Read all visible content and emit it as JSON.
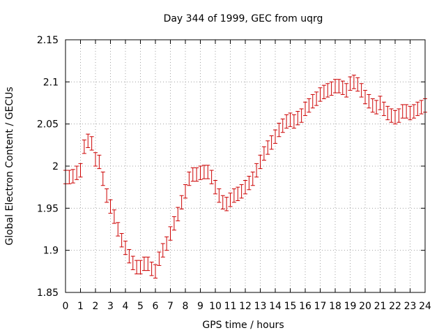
{
  "chart_data": {
    "type": "scatter",
    "title": "Day 344 of 1999, GEC from uqrg",
    "xlabel": "GPS time / hours",
    "ylabel": "Global Electron Content / GECUs",
    "xlim": [
      0,
      24
    ],
    "ylim": [
      1.85,
      2.15
    ],
    "grid": true,
    "series_color": "#cc0000",
    "x_ticks": [
      0,
      1,
      2,
      3,
      4,
      5,
      6,
      7,
      8,
      9,
      10,
      11,
      12,
      13,
      14,
      15,
      16,
      17,
      18,
      19,
      20,
      21,
      22,
      23,
      24
    ],
    "y_ticks": [
      {
        "value": 1.85,
        "label": "1.85"
      },
      {
        "value": 1.9,
        "label": "1.9"
      },
      {
        "value": 1.95,
        "label": "1.95"
      },
      {
        "value": 2.0,
        "label": "2"
      },
      {
        "value": 2.05,
        "label": "2.05"
      },
      {
        "value": 2.1,
        "label": "2.1"
      },
      {
        "value": 2.15,
        "label": "2.15"
      }
    ],
    "error": 0.008,
    "x": [
      0.0,
      0.25,
      0.5,
      0.75,
      1.0,
      1.25,
      1.5,
      1.75,
      2.0,
      2.25,
      2.5,
      2.75,
      3.0,
      3.25,
      3.5,
      3.75,
      4.0,
      4.25,
      4.5,
      4.75,
      5.0,
      5.25,
      5.5,
      5.75,
      6.0,
      6.25,
      6.5,
      6.75,
      7.0,
      7.25,
      7.5,
      7.75,
      8.0,
      8.25,
      8.5,
      8.75,
      9.0,
      9.25,
      9.5,
      9.75,
      10.0,
      10.25,
      10.5,
      10.75,
      11.0,
      11.25,
      11.5,
      11.75,
      12.0,
      12.25,
      12.5,
      12.75,
      13.0,
      13.25,
      13.5,
      13.75,
      14.0,
      14.25,
      14.5,
      14.75,
      15.0,
      15.25,
      15.5,
      15.75,
      16.0,
      16.25,
      16.5,
      16.75,
      17.0,
      17.25,
      17.5,
      17.75,
      18.0,
      18.25,
      18.5,
      18.75,
      19.0,
      19.25,
      19.5,
      19.75,
      20.0,
      20.25,
      20.5,
      20.75,
      21.0,
      21.25,
      21.5,
      21.75,
      22.0,
      22.25,
      22.5,
      22.75,
      23.0,
      23.25,
      23.5,
      23.75,
      24.0
    ],
    "y": [
      1.987,
      1.987,
      1.988,
      1.992,
      1.995,
      2.023,
      2.03,
      2.027,
      2.008,
      2.005,
      1.985,
      1.965,
      1.952,
      1.94,
      1.925,
      1.912,
      1.903,
      1.893,
      1.885,
      1.88,
      1.88,
      1.884,
      1.884,
      1.878,
      1.875,
      1.89,
      1.9,
      1.908,
      1.92,
      1.932,
      1.943,
      1.957,
      1.97,
      1.985,
      1.99,
      1.99,
      1.992,
      1.993,
      1.993,
      1.987,
      1.975,
      1.965,
      1.957,
      1.955,
      1.96,
      1.965,
      1.967,
      1.97,
      1.975,
      1.98,
      1.985,
      1.995,
      2.005,
      2.015,
      2.022,
      2.028,
      2.035,
      2.043,
      2.048,
      2.053,
      2.055,
      2.053,
      2.057,
      2.06,
      2.068,
      2.072,
      2.077,
      2.08,
      2.085,
      2.088,
      2.09,
      2.092,
      2.095,
      2.095,
      2.093,
      2.09,
      2.098,
      2.1,
      2.097,
      2.09,
      2.082,
      2.077,
      2.072,
      2.07,
      2.075,
      2.068,
      2.063,
      2.06,
      2.058,
      2.06,
      2.065,
      2.065,
      2.063,
      2.065,
      2.068,
      2.07,
      2.072
    ]
  }
}
